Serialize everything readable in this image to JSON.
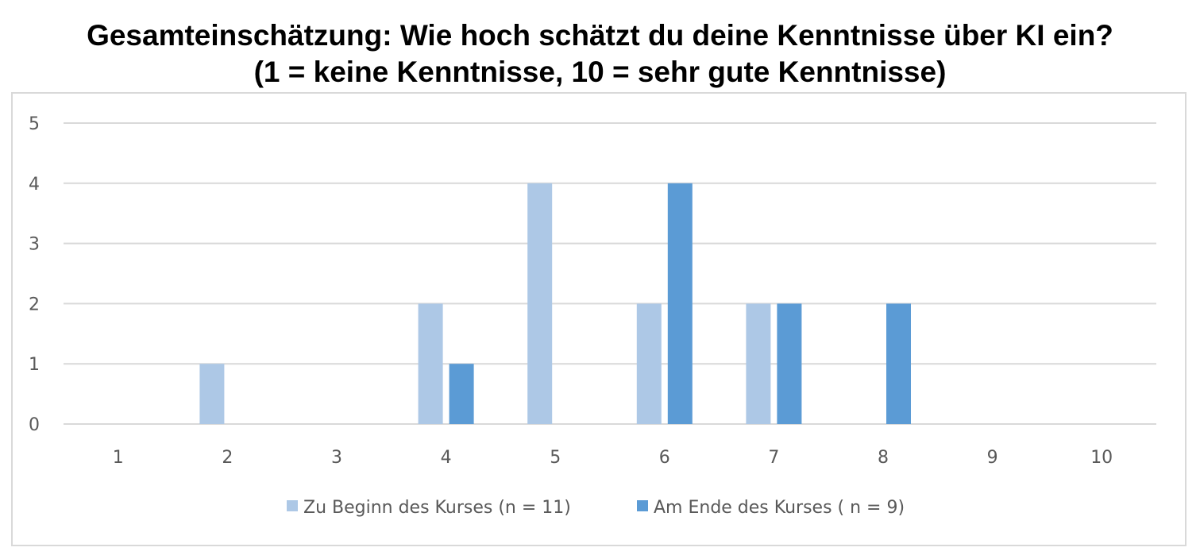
{
  "chart_data": {
    "type": "bar",
    "title_line1": "Gesamteinschätzung: Wie hoch schätzt du deine Kenntnisse über KI ein?",
    "title_line2": "(1 = keine Kenntnisse, 10 = sehr gute Kenntnisse)",
    "categories": [
      "1",
      "2",
      "3",
      "4",
      "5",
      "6",
      "7",
      "8",
      "9",
      "10"
    ],
    "series": [
      {
        "name": "Zu Beginn des Kurses (n = 11)",
        "color": "#adc8e6",
        "values": [
          0,
          1,
          0,
          2,
          4,
          2,
          2,
          0,
          0,
          0
        ]
      },
      {
        "name": "Am Ende des Kurses ( n = 9)",
        "color": "#5b9bd5",
        "values": [
          0,
          0,
          0,
          1,
          0,
          4,
          2,
          2,
          0,
          0
        ]
      }
    ],
    "ylim": [
      0,
      5
    ],
    "yticks": [
      0,
      1,
      2,
      3,
      4,
      5
    ],
    "grid": true,
    "legend_position": "bottom"
  }
}
